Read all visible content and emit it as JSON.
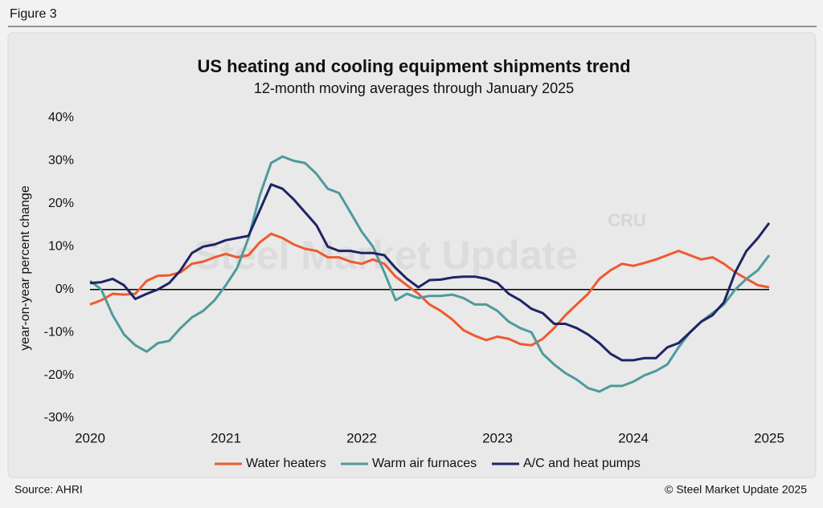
{
  "figure_label": "Figure 3",
  "chart_data": {
    "type": "line",
    "title": "US heating and cooling equipment shipments trend",
    "subtitle": "12-month moving averages through January 2025",
    "y_label": "year-on-year percent change",
    "watermark": "Steel Market Update",
    "watermark_logo": "CRU",
    "x": [
      2020,
      2020.083,
      2020.167,
      2020.25,
      2020.333,
      2020.417,
      2020.5,
      2020.583,
      2020.667,
      2020.75,
      2020.833,
      2020.917,
      2021,
      2021.083,
      2021.167,
      2021.25,
      2021.333,
      2021.417,
      2021.5,
      2021.583,
      2021.667,
      2021.75,
      2021.833,
      2021.917,
      2022,
      2022.083,
      2022.167,
      2022.25,
      2022.333,
      2022.417,
      2022.5,
      2022.583,
      2022.667,
      2022.75,
      2022.833,
      2022.917,
      2023,
      2023.083,
      2023.167,
      2023.25,
      2023.333,
      2023.417,
      2023.5,
      2023.583,
      2023.667,
      2023.75,
      2023.833,
      2023.917,
      2024,
      2024.083,
      2024.167,
      2024.25,
      2024.333,
      2024.417,
      2024.5,
      2024.583,
      2024.667,
      2024.75,
      2024.833,
      2024.917,
      2025
    ],
    "xlim": [
      2020,
      2025
    ],
    "xticks": [
      2020,
      2021,
      2022,
      2023,
      2024,
      2025
    ],
    "ylim": [
      -30,
      40
    ],
    "yticks": [
      {
        "value": -30,
        "label": "-30%"
      },
      {
        "value": -20,
        "label": "-20%"
      },
      {
        "value": -10,
        "label": "-10%"
      },
      {
        "value": 0,
        "label": "0%"
      },
      {
        "value": 10,
        "label": "10%"
      },
      {
        "value": 20,
        "label": "20%"
      },
      {
        "value": 30,
        "label": "30%"
      },
      {
        "value": 40,
        "label": "40%"
      }
    ],
    "zero_line": true,
    "series": [
      {
        "name": "Water heaters",
        "color": "#ee5a2f",
        "values": [
          -3.5,
          -2.5,
          -1,
          -1.2,
          -1,
          2,
          3.2,
          3.3,
          4,
          6,
          6.5,
          7.5,
          8.3,
          7.5,
          8,
          11,
          13,
          12,
          10.5,
          9.5,
          9,
          7.5,
          7.5,
          6.5,
          6,
          7,
          6,
          3,
          1,
          -1,
          -3.5,
          -5,
          -7,
          -9.5,
          -10.8,
          -11.8,
          -11,
          -11.5,
          -12.7,
          -13,
          -11.5,
          -9,
          -6,
          -3.5,
          -1,
          2.5,
          4.5,
          6,
          5.5,
          6.2,
          7,
          8,
          9,
          8,
          7,
          7.5,
          6,
          4,
          2.5,
          1,
          0.5
        ]
      },
      {
        "name": "Warm air furnaces",
        "color": "#4f9a9c",
        "values": [
          2,
          0,
          -6,
          -10.5,
          -13,
          -14.5,
          -12.5,
          -12,
          -9,
          -6.5,
          -5,
          -2.5,
          1,
          5,
          12,
          22,
          29.5,
          31,
          30,
          29.5,
          27,
          23.5,
          22.5,
          18,
          13.5,
          10,
          4,
          -2.5,
          -1,
          -2,
          -1.5,
          -1.5,
          -1.2,
          -2,
          -3.5,
          -3.5,
          -5,
          -7.5,
          -9,
          -10,
          -15,
          -17.5,
          -19.5,
          -21,
          -23,
          -23.8,
          -22.5,
          -22.5,
          -21.5,
          -20,
          -19,
          -17.5,
          -13.5,
          -10,
          -7.5,
          -5.5,
          -3.5,
          0,
          2.5,
          4.5,
          8
        ]
      },
      {
        "name": "A/C and heat pumps",
        "color": "#1f2466",
        "values": [
          1.5,
          1.7,
          2.5,
          1,
          -2.2,
          -1,
          0,
          1.5,
          4.5,
          8.5,
          10,
          10.5,
          11.5,
          12,
          12.5,
          18.5,
          24.5,
          23.5,
          21,
          18,
          15,
          10,
          9,
          9,
          8.5,
          8.5,
          8,
          5,
          2.5,
          0.5,
          2.2,
          2.3,
          2.8,
          3,
          3,
          2.5,
          1.5,
          -1,
          -2.5,
          -4.5,
          -5.5,
          -8,
          -8,
          -9,
          -10.5,
          -12.5,
          -15,
          -16.5,
          -16.5,
          -16,
          -16,
          -13.5,
          -12.5,
          -10,
          -7.5,
          -6,
          -3,
          4,
          9,
          12,
          15.5
        ]
      }
    ],
    "legend": "bottom"
  },
  "footer": {
    "source": "Source: AHRI",
    "copyright": "© Steel Market Update 2025"
  }
}
